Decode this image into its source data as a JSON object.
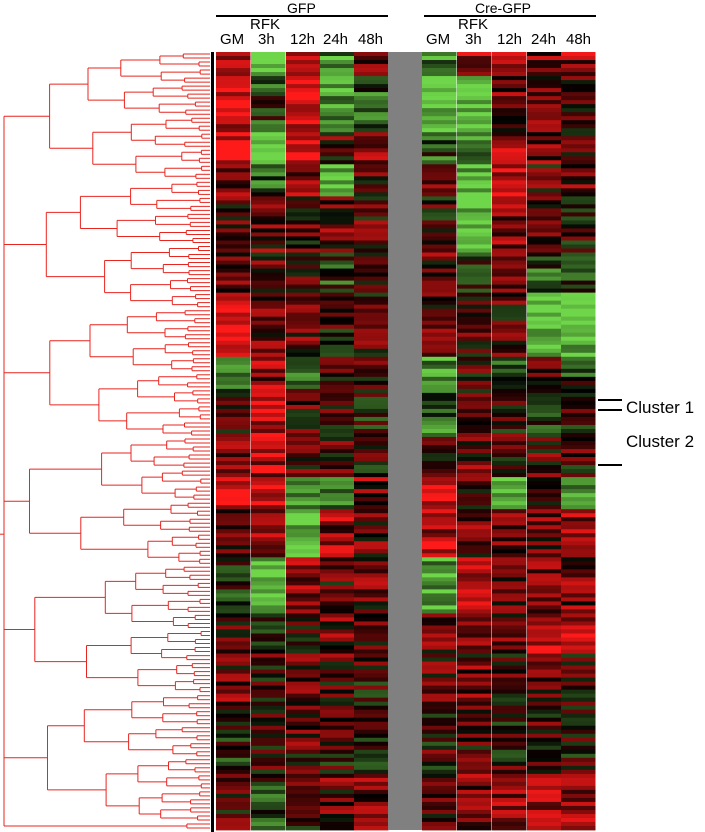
{
  "chart_data": {
    "type": "heatmap",
    "groups": [
      {
        "name": "GFP",
        "columns": [
          "GM",
          "RFK 3h",
          "12h",
          "24h",
          "48h"
        ]
      },
      {
        "name": "Cre-GFP",
        "columns": [
          "GM",
          "RFK 3h",
          "12h",
          "24h",
          "48h"
        ]
      }
    ],
    "column_labels": {
      "gm": "GM",
      "rfk": "RFK",
      "h3": "3h",
      "h12": "12h",
      "h24": "24h",
      "h48": "48h"
    },
    "row_dendrogram": true,
    "dendrogram_color": "#e8251f",
    "colors": {
      "high": "#ff1a1a",
      "mid": "#000000",
      "low": "#6fd64a",
      "separator": "#808080"
    },
    "annotations": [
      {
        "label": "Cluster 1"
      },
      {
        "label": "Cluster 2"
      }
    ],
    "segments": [
      {
        "rows": 6,
        "gfp": [
          0.6,
          -0.9,
          0.4,
          -0.6,
          0.3
        ],
        "cre": [
          -0.5,
          0.6,
          0.5,
          0.4,
          0.5
        ]
      },
      {
        "rows": 14,
        "gfp": [
          0.7,
          -0.2,
          0.8,
          -0.7,
          -0.3
        ],
        "cre": [
          -0.9,
          -0.9,
          0.3,
          0.3,
          0.2
        ]
      },
      {
        "rows": 8,
        "gfp": [
          0.8,
          -0.9,
          0.9,
          0.2,
          0.4
        ],
        "cre": [
          -0.3,
          -0.6,
          0.5,
          0.4,
          0.3
        ]
      },
      {
        "rows": 8,
        "gfp": [
          0.3,
          -0.3,
          0.4,
          -0.9,
          0.2
        ],
        "cre": [
          0.2,
          -0.8,
          0.6,
          0.2,
          0.3
        ]
      },
      {
        "rows": 14,
        "gfp": [
          0.2,
          0.3,
          0.2,
          0.3,
          0.2
        ],
        "cre": [
          0.1,
          -0.9,
          0.4,
          0.2,
          0.1
        ]
      },
      {
        "rows": 10,
        "gfp": [
          0.4,
          0.2,
          0.3,
          -0.2,
          0.1
        ],
        "cre": [
          0.3,
          -0.2,
          0.2,
          -0.3,
          -0.2
        ]
      },
      {
        "rows": 16,
        "gfp": [
          0.9,
          0.4,
          0.3,
          0.1,
          0.2
        ],
        "cre": [
          0.3,
          0.2,
          0.2,
          -0.9,
          -0.8
        ]
      },
      {
        "rows": 8,
        "gfp": [
          -0.3,
          0.5,
          -0.5,
          0.1,
          0.2
        ],
        "cre": [
          -0.6,
          0.2,
          -0.4,
          0.3,
          -0.2
        ]
      },
      {
        "rows": 12,
        "gfp": [
          0.2,
          0.6,
          0.2,
          0.1,
          -0.1
        ],
        "cre": [
          -0.4,
          0.2,
          0.1,
          -0.1,
          0.1
        ]
      },
      {
        "rows": 10,
        "gfp": [
          0.3,
          0.6,
          0.2,
          0.2,
          0.1
        ],
        "cre": [
          0.1,
          0.3,
          0.2,
          0.2,
          0.1
        ]
      },
      {
        "rows": 8,
        "gfp": [
          0.9,
          0.7,
          -0.6,
          -0.4,
          0.4
        ],
        "cre": [
          0.8,
          0.2,
          -0.7,
          0.2,
          -0.6
        ]
      },
      {
        "rows": 12,
        "gfp": [
          0.1,
          0.4,
          -0.9,
          0.5,
          0.3
        ],
        "cre": [
          0.6,
          0.3,
          0.3,
          0.4,
          0.5
        ]
      },
      {
        "rows": 14,
        "gfp": [
          -0.2,
          -0.9,
          0.5,
          0.2,
          0.3
        ],
        "cre": [
          -0.7,
          0.5,
          0.3,
          0.5,
          0.4
        ]
      },
      {
        "rows": 10,
        "gfp": [
          0.2,
          -0.3,
          0.2,
          0.3,
          0.1
        ],
        "cre": [
          0.3,
          0.4,
          0.3,
          0.6,
          0.7
        ]
      },
      {
        "rows": 14,
        "gfp": [
          0.3,
          0.1,
          0.3,
          0.2,
          0.1
        ],
        "cre": [
          0.2,
          0.3,
          0.2,
          0.3,
          0.2
        ]
      },
      {
        "rows": 16,
        "gfp": [
          -0.2,
          0.1,
          0.2,
          0.1,
          0.0
        ],
        "cre": [
          0.1,
          0.2,
          0.1,
          0.1,
          0.1
        ]
      },
      {
        "rows": 14,
        "gfp": [
          0.2,
          -0.2,
          0.1,
          0.3,
          0.4
        ],
        "cre": [
          0.3,
          0.4,
          0.5,
          0.6,
          0.5
        ]
      }
    ]
  }
}
